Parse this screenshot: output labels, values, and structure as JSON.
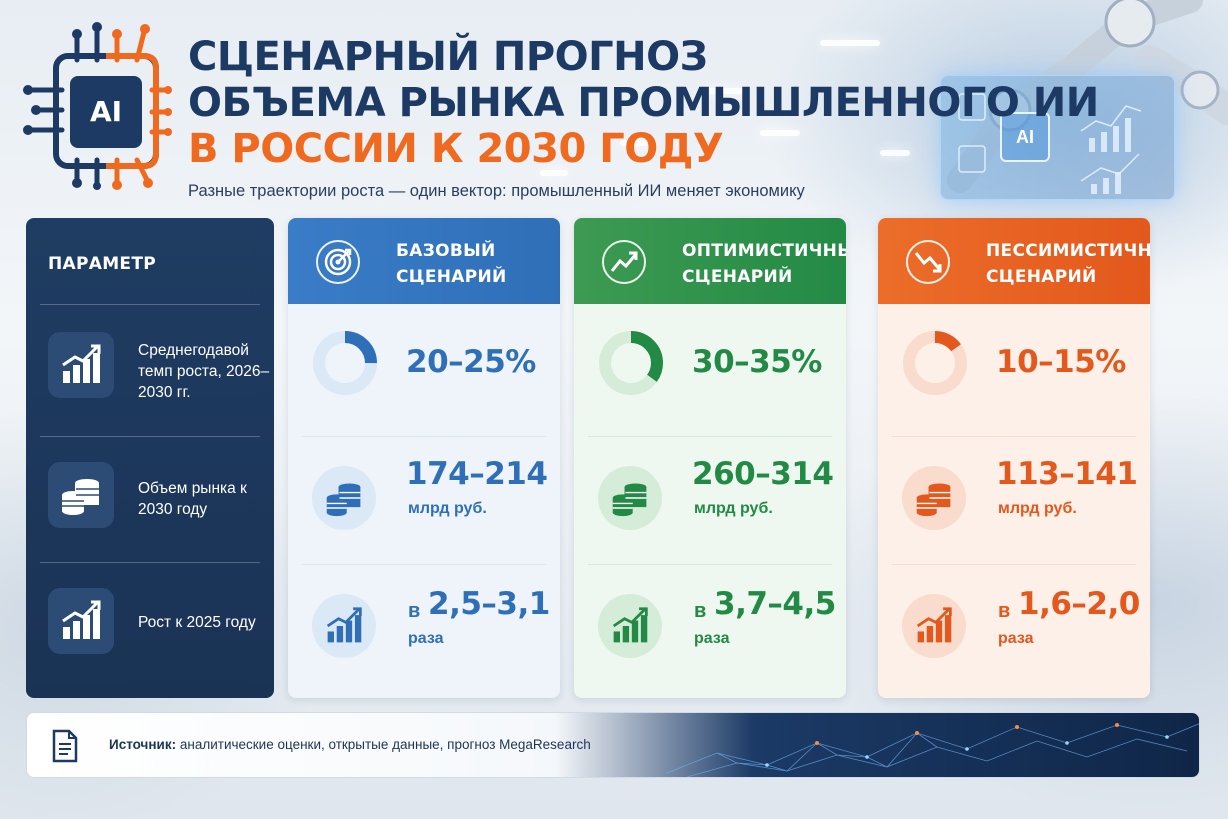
{
  "header": {
    "logo_text": "AI",
    "title_line1": "СЦЕНАРНЫЙ ПРОГНОЗ",
    "title_line2": "ОБЪЕМА РЫНКА ПРОМЫШЛЕННОГО ИИ",
    "title_line3": "В РОССИИ К 2030 ГОДУ",
    "subtitle": "Разные траектории роста — один вектор: промышленный ИИ меняет экономику"
  },
  "holo": {
    "label": "AI"
  },
  "parameters": {
    "header": "ПАРАМЕТР",
    "rows": [
      {
        "label": "Среднегодавой темп роста, 2026–2030 гг.",
        "icon": "bar-chart-growth-icon"
      },
      {
        "label": "Объем рынка к 2030 году",
        "icon": "coins-icon"
      },
      {
        "label": "Рост к 2025 году",
        "icon": "bar-chart-growth-icon"
      }
    ]
  },
  "scenarios": [
    {
      "title_line1": "БАЗОВЫЙ",
      "title_line2": "СЦЕНАРИЙ",
      "icon": "target-icon",
      "color": "#2f6fb8",
      "head_color": "#3a7cc7",
      "light": "#dbe8f5",
      "body_bg": "#eef4fa",
      "growth_rate": "20–25%",
      "growth_share": 0.25,
      "market_value": "174–214",
      "market_unit": "млрд руб.",
      "growth_prefix": "в",
      "growth_mult": "2,5–3,1",
      "growth_unit": "раза"
    },
    {
      "title_line1": "ОПТИМИСТИЧНЫЙ",
      "title_line2": "СЦЕНАРИЙ",
      "icon": "trend-up-icon",
      "color": "#238a45",
      "head_color": "#3d9a52",
      "light": "#d5ecd9",
      "body_bg": "#eef7f0",
      "growth_rate": "30–35%",
      "growth_share": 0.35,
      "market_value": "260–314",
      "market_unit": "млрд руб.",
      "growth_prefix": "в",
      "growth_mult": "3,7–4,5",
      "growth_unit": "раза"
    },
    {
      "title_line1": "ПЕССИМИСТИЧНЫЙ",
      "title_line2": "СЦЕНАРИЙ",
      "icon": "trend-down-icon",
      "color": "#e3581c",
      "head_color": "#ec6d2a",
      "light": "#f9dccd",
      "body_bg": "#fcf0e9",
      "growth_rate": "10–15%",
      "growth_share": 0.15,
      "market_value": "113–141",
      "market_unit": "млрд руб.",
      "growth_prefix": "в",
      "growth_mult": "1,6–2,0",
      "growth_unit": "раза"
    }
  ],
  "footer": {
    "source_label": "Источник:",
    "source_text": "аналитические оценки, открытые данные, прогноз MegaResearch",
    "icon": "document-icon"
  },
  "colors": {
    "navy": "#1c3a63",
    "orange": "#ef6a1f"
  }
}
